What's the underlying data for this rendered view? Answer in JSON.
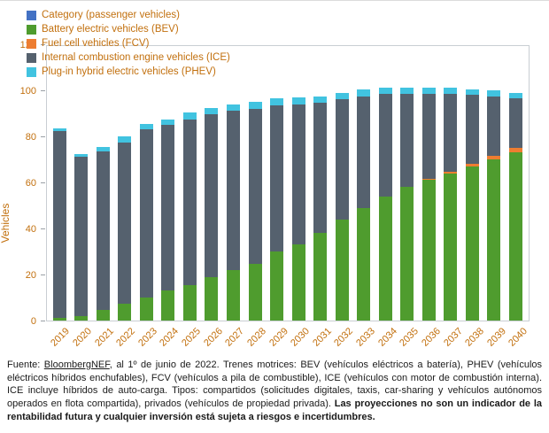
{
  "chart_data": {
    "type": "bar",
    "stacked": true,
    "title": "",
    "ylabel": "Vehicles",
    "ylim": [
      0,
      120
    ],
    "yticks": [
      0,
      20,
      40,
      60,
      80,
      100,
      120
    ],
    "label_color": "#c2700e",
    "axis_border_color": "#c9ced3",
    "legend_position": "top-left",
    "grid": false,
    "categories": [
      "2019",
      "2020",
      "2021",
      "2022",
      "2023",
      "2024",
      "2025",
      "2026",
      "2027",
      "2028",
      "2029",
      "2030",
      "2031",
      "2032",
      "2033",
      "2034",
      "2035",
      "2036",
      "2037",
      "2038",
      "2039",
      "2040"
    ],
    "legend": [
      {
        "label": "Category (passenger vehicles)",
        "color": "#4472c4"
      },
      {
        "label": "Battery electric vehicles (BEV)",
        "color": "#4f9c2e"
      },
      {
        "label": "Fuel cell vehicles (FCV)",
        "color": "#ed7d31"
      },
      {
        "label": "Internal combustion engine vehicles (ICE)",
        "color": "#55616e"
      },
      {
        "label": "Plug-in hybrid electric vehicles (PHEV)",
        "color": "#41c3e0"
      }
    ],
    "series": [
      {
        "name": "Battery electric vehicles (BEV)",
        "color": "#4f9c2e",
        "values": [
          1,
          2,
          4.5,
          7.5,
          10,
          13,
          15.5,
          19,
          22,
          24.5,
          30,
          33,
          38,
          44,
          49,
          54,
          58,
          61,
          64,
          67,
          70,
          73
        ]
      },
      {
        "name": "Fuel cell vehicles (FCV)",
        "color": "#ed7d31",
        "values": [
          0,
          0,
          0,
          0,
          0,
          0,
          0,
          0,
          0,
          0,
          0,
          0,
          0,
          0,
          0,
          0,
          0,
          0.5,
          0.5,
          1,
          1.5,
          2
        ]
      },
      {
        "name": "Internal combustion engine vehicles (ICE)",
        "color": "#55616e",
        "values": [
          81.5,
          69,
          69,
          70,
          73,
          72,
          72,
          70.5,
          69,
          67.5,
          63.5,
          61,
          56.5,
          52,
          48.5,
          44.5,
          40.5,
          37,
          34,
          30,
          26,
          21.5
        ]
      },
      {
        "name": "Plug-in hybrid electric vehicles (PHEV)",
        "color": "#41c3e0",
        "values": [
          1,
          1.5,
          2,
          2.5,
          2.5,
          2.5,
          3,
          3,
          3,
          3,
          3,
          3,
          3,
          3,
          3,
          2.5,
          2.5,
          2.5,
          2.5,
          2.5,
          2.5,
          2.5
        ]
      }
    ]
  },
  "footer": {
    "prefix": "Fuente: ",
    "source": "BloombergNEF",
    "body": ", al 1º de junio de 2022. Trenes motrices: BEV (vehículos eléctricos a batería), PHEV (vehículos eléctricos híbridos enchufables), FCV (vehículos a pila de combustible), ICE (vehículos con motor de combustión interna). ICE incluye híbridos de auto-carga. Tipos: compartidos (solicitudes digitales, taxis, car-sharing y vehículos autónomos operados en flota compartida), privados (vehículos de propiedad privada). ",
    "disclaimer": "Las proyecciones no son un indicador de la rentabilidad futura y cualquier inversión está sujeta a riesgos e incertidumbres."
  }
}
